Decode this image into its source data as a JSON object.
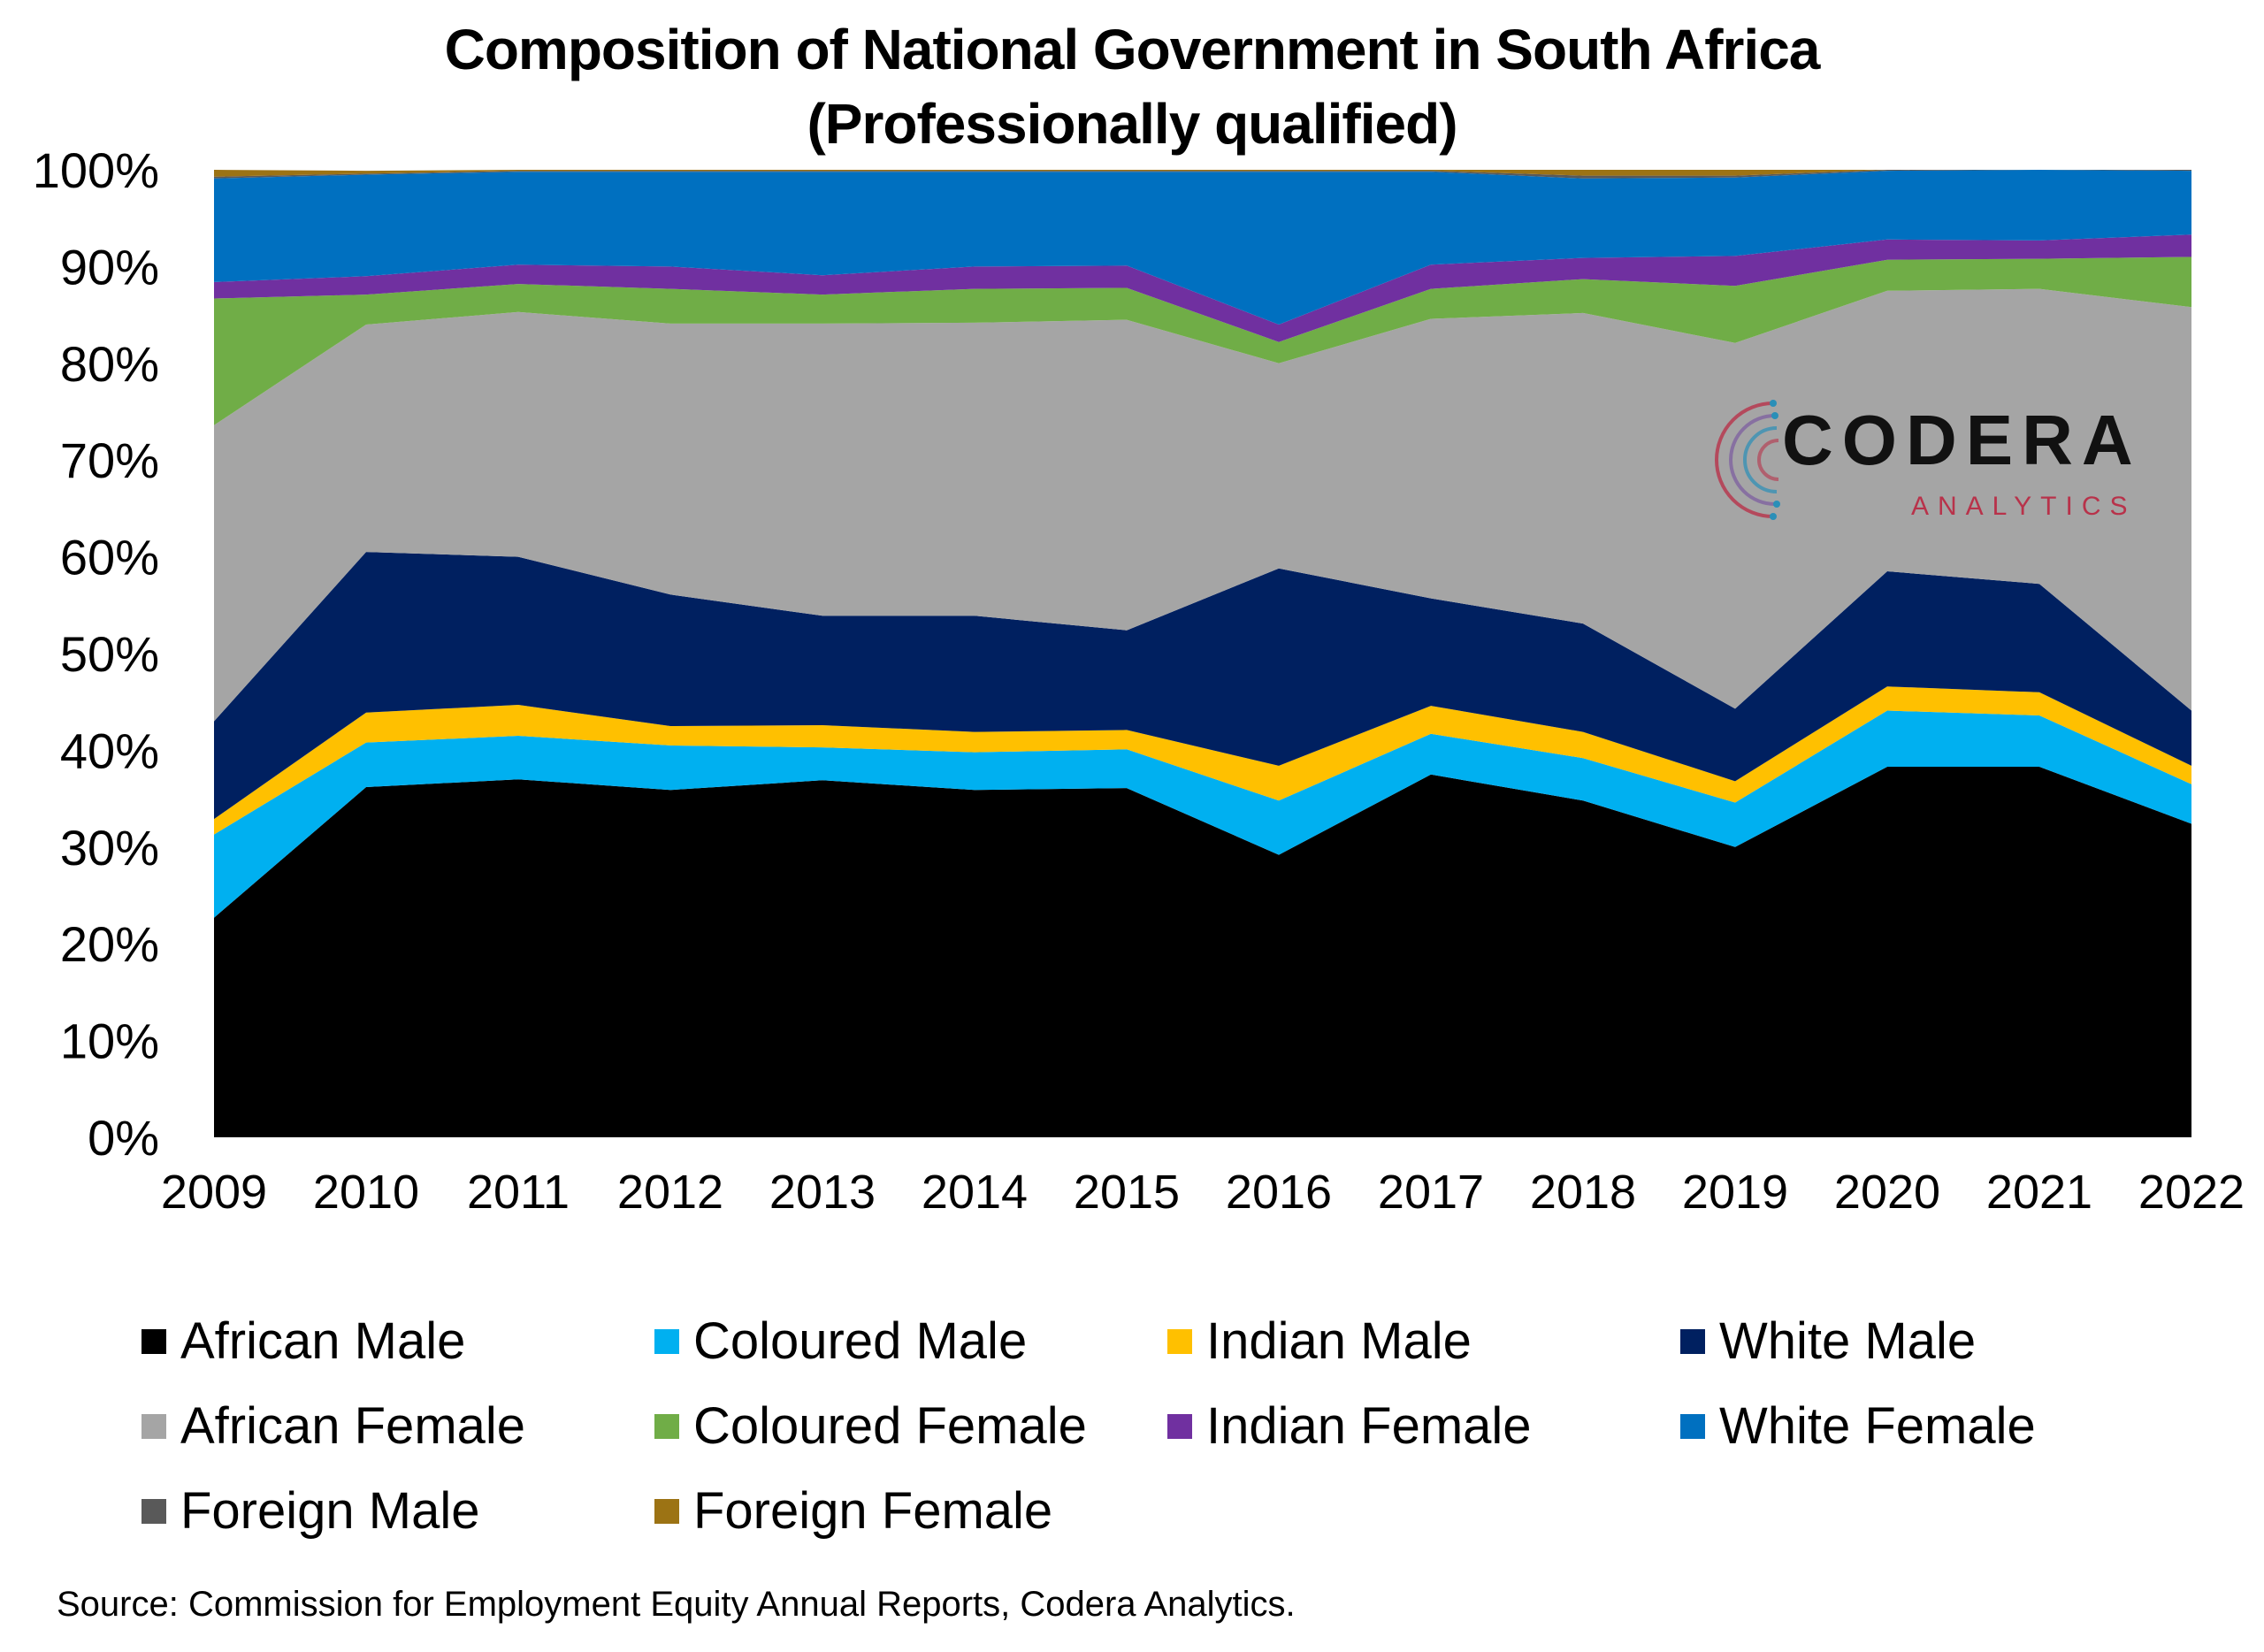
{
  "chart_data": {
    "type": "area",
    "stacked": true,
    "title": [
      "Composition of National Government in South Africa",
      "(Professionally qualified)"
    ],
    "x": [
      "2009",
      "2010",
      "2011",
      "2012",
      "2013",
      "2014",
      "2015",
      "2016",
      "2017",
      "2018",
      "2019",
      "2020",
      "2021",
      "2022"
    ],
    "ylim": [
      0,
      100
    ],
    "yticks": [
      "0%",
      "10%",
      "20%",
      "30%",
      "40%",
      "50%",
      "60%",
      "70%",
      "80%",
      "90%",
      "100%"
    ],
    "grid": false,
    "legend_position": "bottom",
    "series": [
      {
        "name": "African Male",
        "color": "#000000",
        "values": [
          22.7,
          36.2,
          37.0,
          35.9,
          36.9,
          35.9,
          36.1,
          29.2,
          37.5,
          34.8,
          30.0,
          38.3,
          38.3,
          32.4
        ]
      },
      {
        "name": "Coloured Male",
        "color": "#00b0f0",
        "values": [
          8.6,
          4.6,
          4.5,
          4.6,
          3.4,
          3.9,
          4.0,
          5.6,
          4.2,
          4.4,
          4.6,
          5.8,
          5.3,
          4.1
        ]
      },
      {
        "name": "Indian Male",
        "color": "#ffc000",
        "values": [
          1.6,
          3.1,
          3.2,
          2.0,
          2.3,
          2.1,
          2.0,
          3.6,
          2.9,
          2.7,
          2.2,
          2.5,
          2.4,
          1.9
        ]
      },
      {
        "name": "White Male",
        "color": "#002060",
        "values": [
          10.1,
          16.6,
          15.3,
          13.6,
          11.3,
          12.0,
          10.3,
          20.4,
          11.1,
          11.2,
          7.5,
          11.9,
          11.2,
          5.7
        ]
      },
      {
        "name": "African Female",
        "color": "#a5a5a5",
        "values": [
          30.6,
          23.5,
          25.3,
          28.0,
          30.2,
          30.3,
          32.1,
          21.2,
          28.9,
          32.1,
          37.8,
          29.0,
          30.5,
          41.7
        ]
      },
      {
        "name": "Coloured Female",
        "color": "#70ad47",
        "values": [
          13.1,
          3.1,
          2.9,
          3.6,
          3.0,
          3.5,
          3.3,
          2.2,
          3.1,
          3.5,
          5.9,
          3.2,
          3.1,
          5.2
        ]
      },
      {
        "name": "Indian Female",
        "color": "#7030a0",
        "values": [
          1.7,
          1.9,
          2.0,
          2.3,
          2.0,
          2.3,
          2.3,
          1.8,
          2.5,
          2.2,
          3.1,
          2.1,
          1.9,
          2.3
        ]
      },
      {
        "name": "White Female",
        "color": "#0070c0",
        "values": [
          10.7,
          10.5,
          9.6,
          9.8,
          10.7,
          9.8,
          9.7,
          15.8,
          9.6,
          8.2,
          8.1,
          7.1,
          7.3,
          6.6
        ]
      },
      {
        "name": "Foreign Male",
        "color": "#595959",
        "values": [
          0.2,
          0.1,
          0.1,
          0.1,
          0.1,
          0.1,
          0.1,
          0.1,
          0.1,
          0.3,
          0.2,
          0.1,
          0.1,
          0.1
        ]
      },
      {
        "name": "Foreign Female",
        "color": "#9c7314",
        "values": [
          0.7,
          0.3,
          0.1,
          0.1,
          0.1,
          0.1,
          0.1,
          0.1,
          0.1,
          0.6,
          0.6,
          0.0,
          0.0,
          0.0
        ]
      }
    ],
    "source": "Source: Commission for Employment Equity Annual Reports, Codera Analytics."
  },
  "logo": {
    "name": "CODERA",
    "subtitle": "ANALYTICS",
    "colors": [
      "#2a8fb8",
      "#b8324a"
    ]
  }
}
